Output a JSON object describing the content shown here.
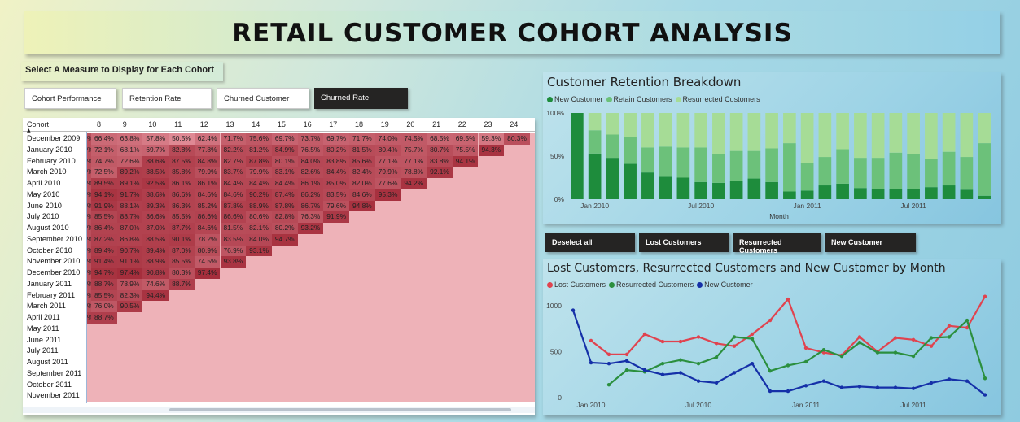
{
  "title": "RETAIL CUSTOMER COHORT ANALYSIS",
  "measure_label": "Select A Measure to Display for Each Cohort",
  "measure_buttons": [
    {
      "label": "Cohort Performance",
      "selected": false
    },
    {
      "label": "Retention Rate",
      "selected": false
    },
    {
      "label": "Churned Customer",
      "selected": false
    },
    {
      "label": "Churned Rate",
      "selected": true
    }
  ],
  "cohort_table": {
    "corner_label": "Cohort",
    "period_headers": [
      "8",
      "9",
      "10",
      "11",
      "12",
      "13",
      "14",
      "15",
      "16",
      "17",
      "18",
      "19",
      "20",
      "21",
      "22",
      "23",
      "24"
    ],
    "first_column_fragment": "%",
    "rows": [
      {
        "cohort": "December 2009",
        "values": [
          "66.4%",
          "63.8%",
          "57.8%",
          "50.5%",
          "62.4%",
          "71.7%",
          "75.6%",
          "69.7%",
          "73.7%",
          "69.7%",
          "71.7%",
          "74.0%",
          "74.5%",
          "68.5%",
          "69.5%",
          "59.3%",
          "80.3%"
        ]
      },
      {
        "cohort": "January 2010",
        "values": [
          "72.1%",
          "68.1%",
          "69.7%",
          "82.8%",
          "77.8%",
          "82.2%",
          "81.2%",
          "84.9%",
          "76.5%",
          "80.2%",
          "81.5%",
          "80.4%",
          "75.7%",
          "80.7%",
          "75.5%",
          "94.3%"
        ]
      },
      {
        "cohort": "February 2010",
        "values": [
          "74.7%",
          "72.6%",
          "88.6%",
          "87.5%",
          "84.8%",
          "82.7%",
          "87.8%",
          "80.1%",
          "84.0%",
          "83.8%",
          "85.6%",
          "77.1%",
          "77.1%",
          "83.8%",
          "94.1%"
        ]
      },
      {
        "cohort": "March 2010",
        "values": [
          "72.5%",
          "89.2%",
          "88.5%",
          "85.8%",
          "79.9%",
          "83.7%",
          "79.9%",
          "83.1%",
          "82.6%",
          "84.4%",
          "82.4%",
          "79.9%",
          "78.8%",
          "92.1%"
        ]
      },
      {
        "cohort": "April 2010",
        "values": [
          "89.5%",
          "89.1%",
          "92.5%",
          "86.1%",
          "86.1%",
          "84.4%",
          "84.4%",
          "84.4%",
          "86.1%",
          "85.0%",
          "82.0%",
          "77.6%",
          "94.2%"
        ]
      },
      {
        "cohort": "May 2010",
        "values": [
          "94.1%",
          "91.7%",
          "88.6%",
          "86.6%",
          "84.6%",
          "84.6%",
          "90.2%",
          "87.4%",
          "86.2%",
          "83.5%",
          "84.6%",
          "95.3%"
        ]
      },
      {
        "cohort": "June 2010",
        "values": [
          "91.9%",
          "88.1%",
          "89.3%",
          "86.3%",
          "85.2%",
          "87.8%",
          "88.9%",
          "87.8%",
          "86.7%",
          "79.6%",
          "94.8%"
        ]
      },
      {
        "cohort": "July 2010",
        "values": [
          "85.5%",
          "88.7%",
          "86.6%",
          "85.5%",
          "86.6%",
          "86.6%",
          "80.6%",
          "82.8%",
          "76.3%",
          "91.9%"
        ]
      },
      {
        "cohort": "August 2010",
        "values": [
          "86.4%",
          "87.0%",
          "87.0%",
          "87.7%",
          "84.6%",
          "81.5%",
          "82.1%",
          "80.2%",
          "93.2%"
        ]
      },
      {
        "cohort": "September 2010",
        "values": [
          "87.2%",
          "86.8%",
          "88.5%",
          "90.1%",
          "78.2%",
          "83.5%",
          "84.0%",
          "94.7%"
        ]
      },
      {
        "cohort": "October 2010",
        "values": [
          "89.4%",
          "90.7%",
          "89.4%",
          "87.0%",
          "80.9%",
          "76.9%",
          "93.1%"
        ]
      },
      {
        "cohort": "November 2010",
        "values": [
          "91.4%",
          "91.1%",
          "88.9%",
          "85.5%",
          "74.5%",
          "93.8%"
        ]
      },
      {
        "cohort": "December 2010",
        "values": [
          "94.7%",
          "97.4%",
          "90.8%",
          "80.3%",
          "97.4%"
        ]
      },
      {
        "cohort": "January 2011",
        "values": [
          "88.7%",
          "78.9%",
          "74.6%",
          "88.7%"
        ]
      },
      {
        "cohort": "February 2011",
        "values": [
          "85.5%",
          "82.3%",
          "94.4%"
        ]
      },
      {
        "cohort": "March 2011",
        "values": [
          "76.0%",
          "90.5%"
        ]
      },
      {
        "cohort": "April 2011",
        "values": [
          "88.7%"
        ]
      },
      {
        "cohort": "May 2011",
        "values": []
      },
      {
        "cohort": "June 2011",
        "values": []
      },
      {
        "cohort": "July 2011",
        "values": []
      },
      {
        "cohort": "August 2011",
        "values": []
      },
      {
        "cohort": "September 2011",
        "values": []
      },
      {
        "cohort": "October 2011",
        "values": []
      },
      {
        "cohort": "November 2011",
        "values": []
      }
    ]
  },
  "colors": {
    "heat_empty": "#eeb2b8",
    "heat_low": "#e08a95",
    "heat_high": "#a52e3c",
    "dark_green": "#1e8c3c",
    "mid_green": "#6cc17a",
    "light_green": "#a6dc96",
    "line_red": "#e0434f",
    "line_green": "#2b8f3e",
    "line_blue": "#1530a8",
    "button_dark": "#252423"
  },
  "action_buttons": [
    "Deselect all",
    "Lost Customers",
    "Resurrected Customers",
    "New Customer"
  ],
  "chart_data": [
    {
      "type": "bar",
      "title": "Customer Retention Breakdown",
      "xlabel": "Month",
      "ylabel": "",
      "ylim": [
        0,
        100
      ],
      "y_ticks": [
        "0%",
        "50%",
        "100%"
      ],
      "x_tick_labels": [
        "Jan 2010",
        "Jul 2010",
        "Jan 2011",
        "Jul 2011"
      ],
      "stacked": true,
      "categories": [
        "Dec 2009",
        "Jan 2010",
        "Feb 2010",
        "Mar 2010",
        "Apr 2010",
        "May 2010",
        "Jun 2010",
        "Jul 2010",
        "Aug 2010",
        "Sep 2010",
        "Oct 2010",
        "Nov 2010",
        "Dec 2010",
        "Jan 2011",
        "Feb 2011",
        "Mar 2011",
        "Apr 2011",
        "May 2011",
        "Jun 2011",
        "Jul 2011",
        "Aug 2011",
        "Sep 2011",
        "Oct 2011",
        "Nov 2011"
      ],
      "series": [
        {
          "name": "New Customer",
          "color": "#1e8c3c",
          "values": [
            100,
            53,
            48,
            41,
            31,
            26,
            25,
            20,
            19,
            21,
            24,
            20,
            9,
            10,
            16,
            18,
            13,
            12,
            12,
            12,
            14,
            16,
            11,
            4
          ]
        },
        {
          "name": "Retain  Customers",
          "color": "#6cc17a",
          "values": [
            0,
            27,
            27,
            31,
            29,
            35,
            35,
            40,
            33,
            35,
            32,
            39,
            56,
            32,
            33,
            40,
            35,
            36,
            42,
            40,
            33,
            39,
            38,
            61
          ]
        },
        {
          "name": "Resurrected Customers",
          "color": "#a6dc96",
          "values": [
            0,
            20,
            25,
            28,
            40,
            39,
            40,
            40,
            48,
            44,
            44,
            41,
            35,
            58,
            51,
            42,
            52,
            52,
            46,
            48,
            53,
            45,
            51,
            35
          ]
        }
      ]
    },
    {
      "type": "line",
      "title": "Lost Customers, Resurrected Customers and New Customer by Month",
      "xlabel": "",
      "ylabel": "",
      "ylim": [
        0,
        1150
      ],
      "y_ticks": [
        "0",
        "500",
        "1000"
      ],
      "x_tick_labels": [
        "Jan 2010",
        "Jul 2010",
        "Jan 2011",
        "Jul 2011"
      ],
      "categories": [
        "Dec 2009",
        "Jan 2010",
        "Feb 2010",
        "Mar 2010",
        "Apr 2010",
        "May 2010",
        "Jun 2010",
        "Jul 2010",
        "Aug 2010",
        "Sep 2010",
        "Oct 2010",
        "Nov 2010",
        "Dec 2010",
        "Jan 2011",
        "Feb 2011",
        "Mar 2011",
        "Apr 2011",
        "May 2011",
        "Jun 2011",
        "Jul 2011",
        "Aug 2011",
        "Sep 2011",
        "Oct 2011",
        "Nov 2011"
      ],
      "series": [
        {
          "name": "Lost Customers",
          "color": "#e0434f",
          "values": [
            null,
            620,
            470,
            470,
            690,
            610,
            610,
            660,
            590,
            560,
            690,
            840,
            1070,
            540,
            490,
            460,
            660,
            500,
            650,
            630,
            560,
            780,
            760,
            1100
          ]
        },
        {
          "name": "Resurrected Customers",
          "color": "#2b8f3e",
          "values": [
            null,
            null,
            140,
            300,
            280,
            370,
            410,
            370,
            440,
            660,
            640,
            290,
            350,
            390,
            520,
            450,
            600,
            490,
            490,
            450,
            650,
            660,
            840,
            210
          ]
        },
        {
          "name": "New Customer",
          "color": "#1530a8",
          "values": [
            950,
            380,
            370,
            400,
            300,
            250,
            270,
            180,
            160,
            270,
            370,
            70,
            70,
            130,
            180,
            110,
            120,
            110,
            110,
            100,
            160,
            200,
            180,
            30
          ]
        }
      ]
    }
  ]
}
